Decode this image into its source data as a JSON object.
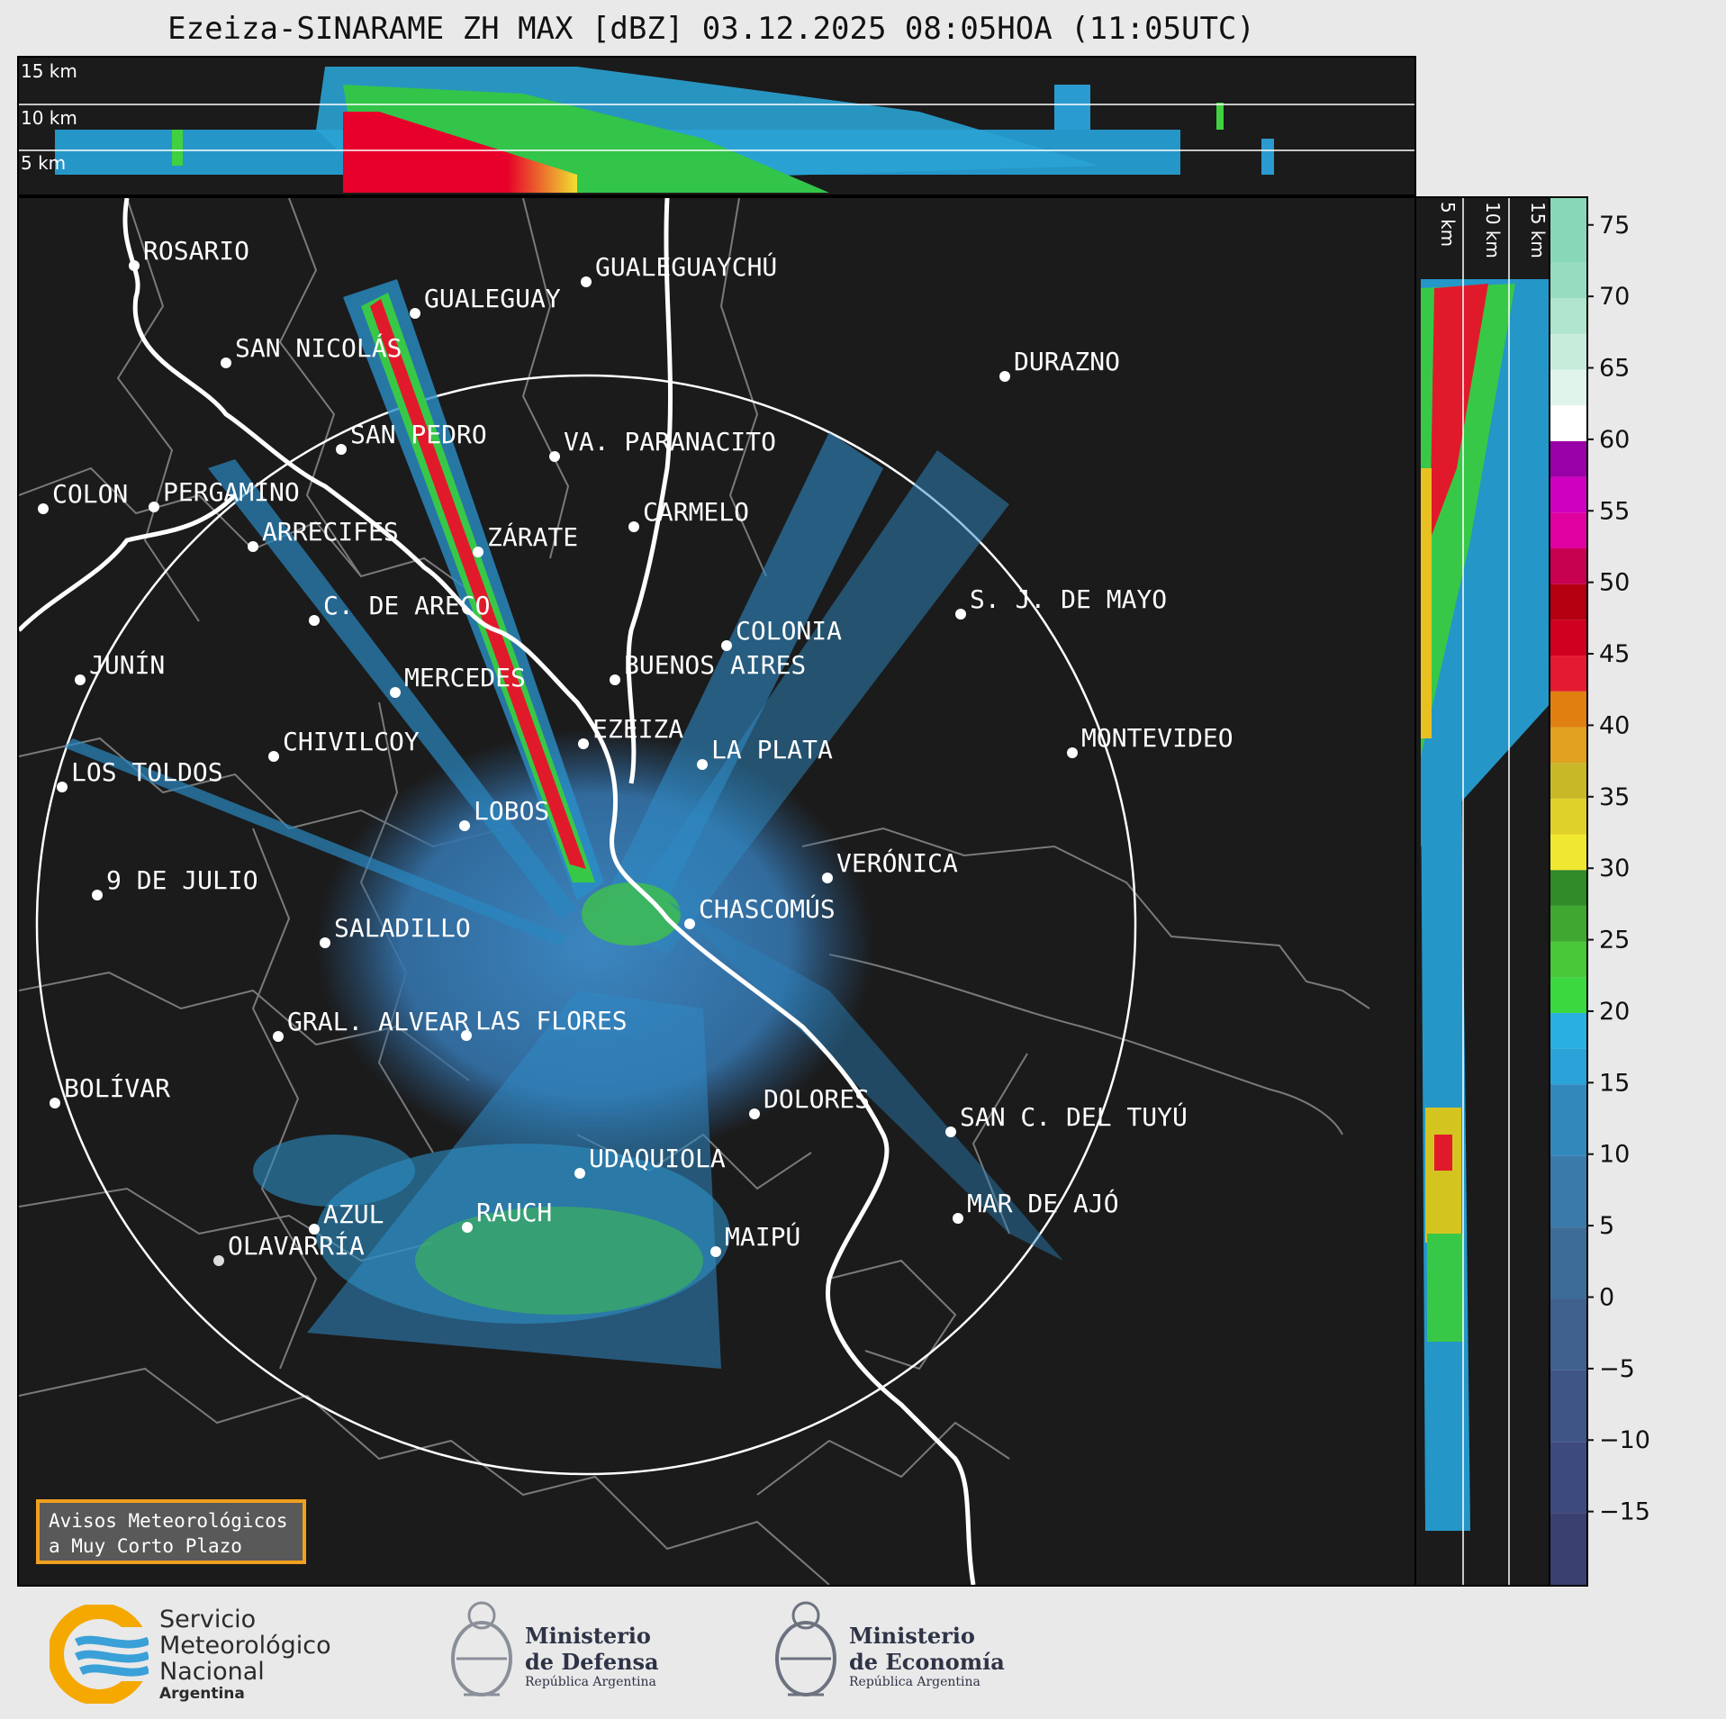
{
  "title": "Ezeiza-SINARAME ZH MAX [dBZ] 03.12.2025 08:05HOA (11:05UTC)",
  "top_panel": {
    "levels": [
      "15 km",
      "10 km",
      "5 km"
    ]
  },
  "side_panel": {
    "levels": [
      "5 km",
      "10 km",
      "15 km"
    ]
  },
  "colorbar": {
    "unit": "dBZ",
    "ticks": [
      "75",
      "70",
      "65",
      "60",
      "55",
      "50",
      "45",
      "40",
      "35",
      "30",
      "25",
      "20",
      "15",
      "10",
      "5",
      "0",
      "−5",
      "−10",
      "−15"
    ],
    "range": [
      -20,
      77
    ]
  },
  "cities": [
    {
      "name": "ROSARIO"
    },
    {
      "name": "GUALEGUAYCHÚ"
    },
    {
      "name": "GUALEGUAY"
    },
    {
      "name": "SAN NICOLÁS"
    },
    {
      "name": "DURAZNO"
    },
    {
      "name": "SAN PEDRO"
    },
    {
      "name": "VA. PARANACITO"
    },
    {
      "name": "COLON"
    },
    {
      "name": "PERGAMINO"
    },
    {
      "name": "CARMELO"
    },
    {
      "name": "ARRECIFES"
    },
    {
      "name": "ZÁRATE"
    },
    {
      "name": "S. J. DE MAYO"
    },
    {
      "name": "C. DE ARECO"
    },
    {
      "name": "COLONIA"
    },
    {
      "name": "JUNÍN"
    },
    {
      "name": "BUENOS AIRES"
    },
    {
      "name": "MERCEDES"
    },
    {
      "name": "EZEIZA"
    },
    {
      "name": "MONTEVIDEO"
    },
    {
      "name": "CHIVILCOY"
    },
    {
      "name": "LA PLATA"
    },
    {
      "name": "LOS TOLDOS"
    },
    {
      "name": "LOBOS"
    },
    {
      "name": "VERÓNICA"
    },
    {
      "name": "9 DE JULIO"
    },
    {
      "name": "CHASCOMÚS"
    },
    {
      "name": "SALADILLO"
    },
    {
      "name": "GRAL. ALVEAR"
    },
    {
      "name": "LAS FLORES"
    },
    {
      "name": "BOLÍVAR"
    },
    {
      "name": "DOLORES"
    },
    {
      "name": "SAN C. DEL TUYÚ"
    },
    {
      "name": "UDAQUIOLA"
    },
    {
      "name": "RAUCH"
    },
    {
      "name": "MAR DE AJÓ"
    },
    {
      "name": "AZUL"
    },
    {
      "name": "OLAVARRÍA"
    },
    {
      "name": "MAIPÚ"
    }
  ],
  "avisos": {
    "line1": "Avisos Meteorológicos",
    "line2": "a Muy Corto Plazo"
  },
  "logos": {
    "smn": {
      "l1": "Servicio",
      "l2": "Meteorológico",
      "l3": "Nacional",
      "l4": "Argentina"
    },
    "defensa": {
      "l1": "Ministerio",
      "l2": "de Defensa",
      "l3": "República Argentina"
    },
    "economia": {
      "l1": "Ministerio",
      "l2": "de Economía",
      "l3": "República Argentina"
    }
  }
}
